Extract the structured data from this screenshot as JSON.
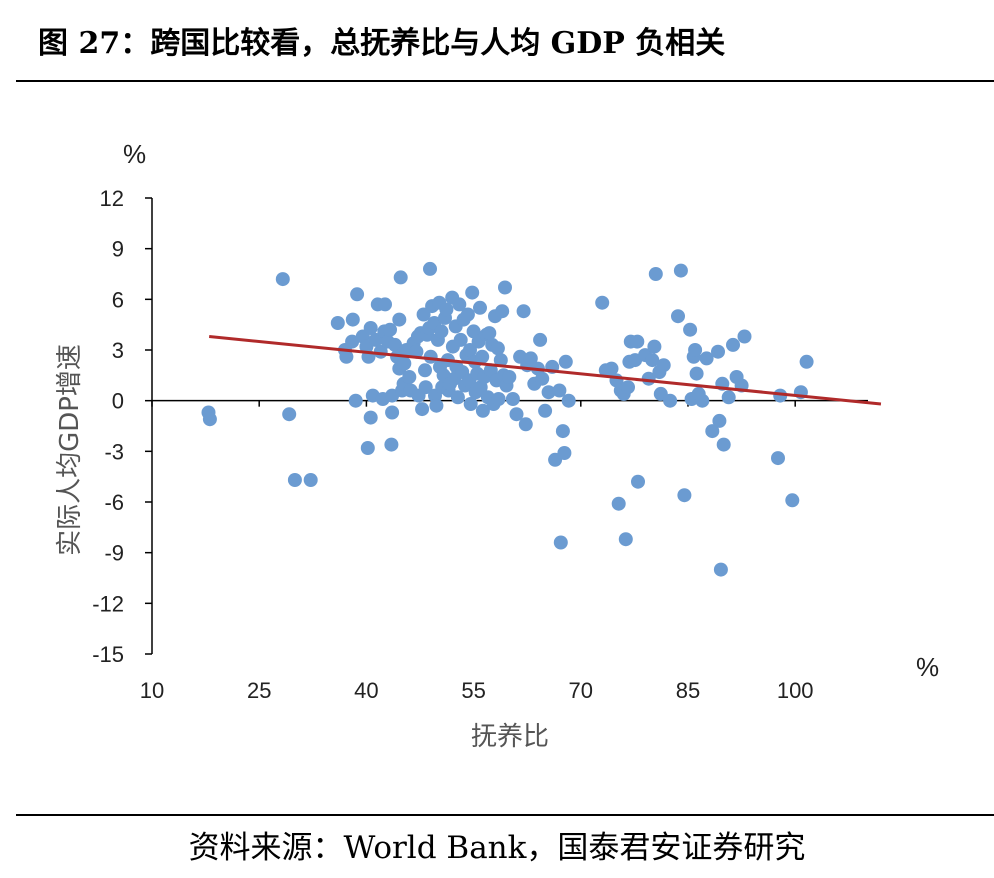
{
  "title": "图 27：跨国比较看，总抚养比与人均 GDP 负相关",
  "source": "资料来源：World Bank，国泰君安证券研究",
  "colors": {
    "points": "#6B9BD1",
    "trendline": "#B02A2A",
    "axis": "#000000"
  },
  "chart_data": {
    "type": "scatter",
    "xlabel": "抚养比",
    "ylabel": "实际人均GDP增速",
    "x_unit": "%",
    "y_unit": "%",
    "xlim": [
      10,
      110
    ],
    "ylim": [
      -15,
      12
    ],
    "x_ticks": [
      "10",
      "25",
      "40",
      "55",
      "70",
      "85",
      "100"
    ],
    "y_ticks": [
      "12",
      "9",
      "6",
      "3",
      "0",
      "-3",
      "-6",
      "-9",
      "-12",
      "-15"
    ],
    "grid": false,
    "trendline": {
      "x": [
        18,
        112
      ],
      "y": [
        3.8,
        -0.2
      ]
    },
    "points": [
      [
        17.9,
        -0.7
      ],
      [
        18.1,
        -1.1
      ],
      [
        28.3,
        7.2
      ],
      [
        29.2,
        -0.8
      ],
      [
        30.0,
        -4.7
      ],
      [
        32.2,
        -4.7
      ],
      [
        36.0,
        4.6
      ],
      [
        37.0,
        3.0
      ],
      [
        37.2,
        2.6
      ],
      [
        38.0,
        3.5
      ],
      [
        38.1,
        4.8
      ],
      [
        38.5,
        0.0
      ],
      [
        38.7,
        6.3
      ],
      [
        39.5,
        3.8
      ],
      [
        40.0,
        3.2
      ],
      [
        40.3,
        2.6
      ],
      [
        40.2,
        -2.8
      ],
      [
        40.6,
        4.3
      ],
      [
        40.6,
        -1.0
      ],
      [
        40.9,
        0.3
      ],
      [
        41.3,
        3.6
      ],
      [
        41.6,
        5.7
      ],
      [
        42.0,
        2.9
      ],
      [
        42.3,
        0.1
      ],
      [
        42.5,
        4.1
      ],
      [
        42.6,
        5.7
      ],
      [
        43.0,
        3.5
      ],
      [
        43.3,
        4.2
      ],
      [
        43.5,
        -2.6
      ],
      [
        43.6,
        0.3
      ],
      [
        43.6,
        -0.7
      ],
      [
        44.0,
        3.3
      ],
      [
        44.3,
        2.6
      ],
      [
        44.6,
        4.8
      ],
      [
        44.8,
        7.3
      ],
      [
        44.6,
        1.9
      ],
      [
        45.0,
        0.6
      ],
      [
        45.2,
        1.0
      ],
      [
        45.3,
        2.2
      ],
      [
        45.6,
        3.0
      ],
      [
        46.0,
        1.4
      ],
      [
        46.2,
        0.6
      ],
      [
        46.6,
        3.4
      ],
      [
        47.0,
        2.9
      ],
      [
        47.2,
        3.8
      ],
      [
        47.3,
        0.3
      ],
      [
        47.6,
        4.0
      ],
      [
        47.8,
        -0.5
      ],
      [
        48.0,
        5.1
      ],
      [
        48.2,
        1.8
      ],
      [
        48.3,
        0.8
      ],
      [
        48.5,
        3.9
      ],
      [
        48.8,
        4.3
      ],
      [
        48.9,
        7.8
      ],
      [
        49.0,
        2.6
      ],
      [
        49.2,
        5.6
      ],
      [
        49.5,
        4.6
      ],
      [
        49.6,
        0.3
      ],
      [
        49.8,
        -0.3
      ],
      [
        50.0,
        3.6
      ],
      [
        50.2,
        5.8
      ],
      [
        50.3,
        2.0
      ],
      [
        50.5,
        4.1
      ],
      [
        50.6,
        0.8
      ],
      [
        50.8,
        1.5
      ],
      [
        51.0,
        4.9
      ],
      [
        51.2,
        5.4
      ],
      [
        51.4,
        2.4
      ],
      [
        51.5,
        0.6
      ],
      [
        51.7,
        1.0
      ],
      [
        52.0,
        6.1
      ],
      [
        52.1,
        3.2
      ],
      [
        52.3,
        1.3
      ],
      [
        52.5,
        4.4
      ],
      [
        52.6,
        2.0
      ],
      [
        52.8,
        0.2
      ],
      [
        53.0,
        5.7
      ],
      [
        53.2,
        3.6
      ],
      [
        53.4,
        1.7
      ],
      [
        53.6,
        4.8
      ],
      [
        53.8,
        0.9
      ],
      [
        54.0,
        2.7
      ],
      [
        54.2,
        5.1
      ],
      [
        54.4,
        1.2
      ],
      [
        54.5,
        3.0
      ],
      [
        54.6,
        -0.2
      ],
      [
        54.8,
        6.4
      ],
      [
        55.0,
        4.1
      ],
      [
        55.2,
        2.3
      ],
      [
        55.3,
        0.5
      ],
      [
        55.5,
        1.6
      ],
      [
        55.7,
        3.5
      ],
      [
        55.9,
        5.5
      ],
      [
        56.0,
        0.8
      ],
      [
        56.2,
        2.6
      ],
      [
        56.3,
        -0.6
      ],
      [
        56.5,
        1.4
      ],
      [
        56.8,
        3.9
      ],
      [
        57.0,
        0.2
      ],
      [
        57.2,
        4.0
      ],
      [
        57.4,
        1.8
      ],
      [
        57.6,
        3.3
      ],
      [
        57.8,
        -0.2
      ],
      [
        58.0,
        5.0
      ],
      [
        58.2,
        1.2
      ],
      [
        58.4,
        3.1
      ],
      [
        58.5,
        0.1
      ],
      [
        58.8,
        2.4
      ],
      [
        59.0,
        5.3
      ],
      [
        59.2,
        1.5
      ],
      [
        59.4,
        6.7
      ],
      [
        59.6,
        0.9
      ],
      [
        60.0,
        1.4
      ],
      [
        60.5,
        0.1
      ],
      [
        61.0,
        -0.8
      ],
      [
        61.5,
        2.6
      ],
      [
        62.0,
        5.3
      ],
      [
        62.3,
        -1.4
      ],
      [
        62.5,
        2.1
      ],
      [
        63.0,
        2.5
      ],
      [
        63.5,
        1.0
      ],
      [
        64.0,
        1.9
      ],
      [
        64.3,
        3.6
      ],
      [
        64.6,
        1.3
      ],
      [
        65.0,
        -0.6
      ],
      [
        65.5,
        0.5
      ],
      [
        66.0,
        2.0
      ],
      [
        66.4,
        -3.5
      ],
      [
        67.0,
        0.6
      ],
      [
        67.2,
        -8.4
      ],
      [
        67.5,
        -1.8
      ],
      [
        67.7,
        -3.1
      ],
      [
        67.9,
        2.3
      ],
      [
        68.3,
        0.0
      ],
      [
        73.0,
        5.8
      ],
      [
        73.5,
        1.8
      ],
      [
        74.3,
        1.9
      ],
      [
        75.0,
        1.2
      ],
      [
        75.3,
        -6.1
      ],
      [
        75.6,
        0.6
      ],
      [
        76.0,
        0.4
      ],
      [
        76.3,
        -8.2
      ],
      [
        76.6,
        0.8
      ],
      [
        76.8,
        2.3
      ],
      [
        77.0,
        3.5
      ],
      [
        77.6,
        2.4
      ],
      [
        77.9,
        3.5
      ],
      [
        78.0,
        -4.8
      ],
      [
        79.0,
        2.7
      ],
      [
        79.5,
        1.3
      ],
      [
        80.0,
        2.4
      ],
      [
        80.3,
        3.2
      ],
      [
        80.5,
        7.5
      ],
      [
        81.0,
        1.7
      ],
      [
        81.2,
        0.4
      ],
      [
        81.6,
        2.1
      ],
      [
        82.5,
        0.0
      ],
      [
        83.6,
        5.0
      ],
      [
        84.0,
        7.7
      ],
      [
        84.5,
        -5.6
      ],
      [
        85.3,
        4.2
      ],
      [
        85.5,
        0.1
      ],
      [
        85.8,
        2.6
      ],
      [
        86.0,
        3.0
      ],
      [
        86.2,
        1.6
      ],
      [
        86.5,
        0.4
      ],
      [
        87.0,
        0.0
      ],
      [
        87.6,
        2.5
      ],
      [
        88.4,
        -1.8
      ],
      [
        89.2,
        2.9
      ],
      [
        89.4,
        -1.2
      ],
      [
        89.6,
        -10.0
      ],
      [
        89.8,
        1.0
      ],
      [
        90.0,
        -2.6
      ],
      [
        90.7,
        0.2
      ],
      [
        91.3,
        3.3
      ],
      [
        91.8,
        1.4
      ],
      [
        92.5,
        0.9
      ],
      [
        92.9,
        3.8
      ],
      [
        97.9,
        0.3
      ],
      [
        97.6,
        -3.4
      ],
      [
        99.6,
        -5.9
      ],
      [
        100.8,
        0.5
      ],
      [
        101.6,
        2.3
      ]
    ]
  }
}
